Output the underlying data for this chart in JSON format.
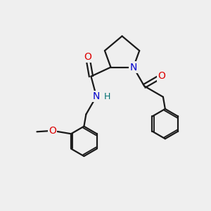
{
  "bg_color": "#efefef",
  "bond_color": "#1a1a1a",
  "atom_colors": {
    "O": "#dd0000",
    "N": "#0000cc",
    "H": "#007070",
    "C": "#1a1a1a"
  },
  "bond_width": 1.6,
  "font_size_atoms": 10,
  "font_size_h": 9,
  "figsize": [
    3.0,
    3.0
  ],
  "dpi": 100
}
